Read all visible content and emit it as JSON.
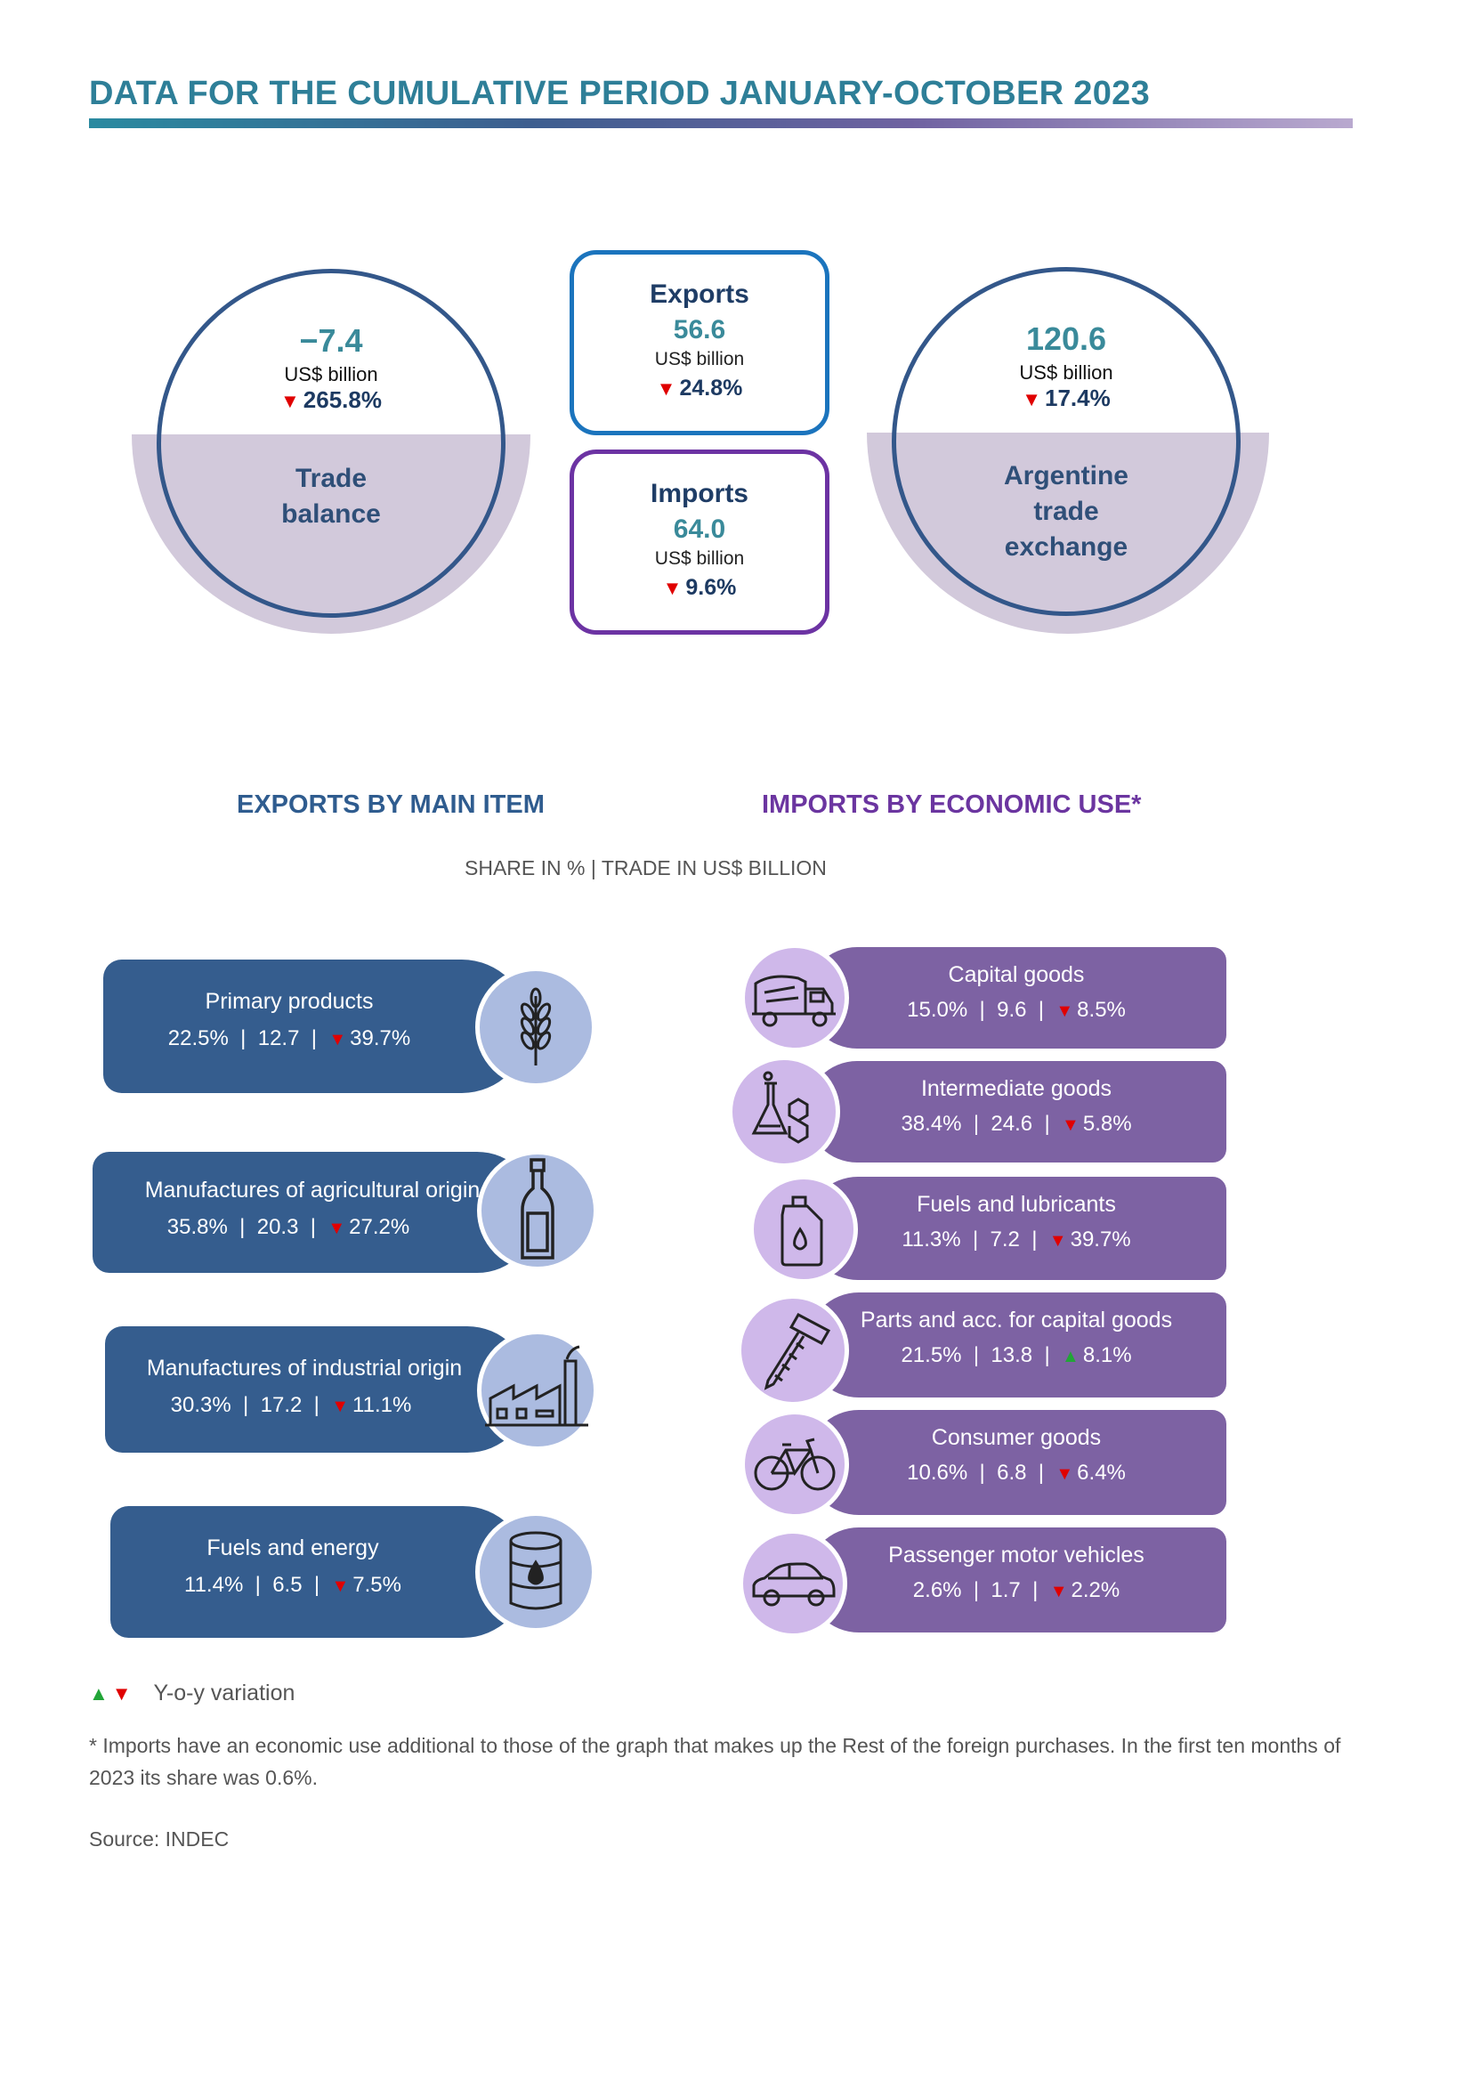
{
  "title": "DATA FOR THE CUMULATIVE PERIOD JANUARY-OCTOBER 2023",
  "summary": {
    "trade_balance": {
      "value": "−7.4",
      "unit": "US$ billion",
      "variation": "265.8%",
      "direction": "down",
      "label_line1": "Trade",
      "label_line2": "balance"
    },
    "exports": {
      "title": "Exports",
      "value": "56.6",
      "unit": "US$ billion",
      "variation": "24.8%",
      "direction": "down"
    },
    "imports": {
      "title": "Imports",
      "value": "64.0",
      "unit": "US$ billion",
      "variation": "9.6%",
      "direction": "down"
    },
    "trade_exchange": {
      "value": "120.6",
      "unit": "US$ billion",
      "variation": "17.4%",
      "direction": "down",
      "label_line1": "Argentine",
      "label_line2": "trade",
      "label_line3": "exchange"
    }
  },
  "sections": {
    "exports_title": "EXPORTS BY MAIN ITEM",
    "imports_title": "IMPORTS BY ECONOMIC USE*",
    "subtitle": "SHARE IN % | TRADE IN US$ BILLION"
  },
  "exports": [
    {
      "name": "Primary products",
      "share": "22.5%",
      "value": "12.7",
      "variation": "39.7%",
      "direction": "down",
      "icon": "wheat-icon"
    },
    {
      "name": "Manufactures of agricultural origin",
      "share": "35.8%",
      "value": "20.3",
      "variation": "27.2%",
      "direction": "down",
      "icon": "bottle-icon"
    },
    {
      "name": "Manufactures of industrial origin",
      "share": "30.3%",
      "value": "17.2",
      "variation": "11.1%",
      "direction": "down",
      "icon": "factory-icon"
    },
    {
      "name": "Fuels and energy",
      "share": "11.4%",
      "value": "6.5",
      "variation": "7.5%",
      "direction": "down",
      "icon": "oil-barrel-icon"
    }
  ],
  "imports": [
    {
      "name": "Capital goods",
      "share": "15.0%",
      "value": "9.6",
      "variation": "8.5%",
      "direction": "down",
      "icon": "cement-truck-icon"
    },
    {
      "name": "Intermediate goods",
      "share": "38.4%",
      "value": "24.6",
      "variation": "5.8%",
      "direction": "down",
      "icon": "chemistry-flask-icon"
    },
    {
      "name": "Fuels and lubricants",
      "share": "11.3%",
      "value": "7.2",
      "variation": "39.7%",
      "direction": "down",
      "icon": "fuel-jerrycan-icon"
    },
    {
      "name": "Parts and acc. for capital goods",
      "share": "21.5%",
      "value": "13.8",
      "variation": "8.1%",
      "direction": "up",
      "icon": "screw-icon"
    },
    {
      "name": "Consumer goods",
      "share": "10.6%",
      "value": "6.8",
      "variation": "6.4%",
      "direction": "down",
      "icon": "bicycle-icon"
    },
    {
      "name": "Passenger motor vehicles",
      "share": "2.6%",
      "value": "1.7",
      "variation": "2.2%",
      "direction": "down",
      "icon": "car-icon"
    }
  ],
  "legend": "Y-o-y variation",
  "note": "* Imports have an economic use additional to those of the graph that makes up the Rest of the foreign purchases. In the first ten months of 2023 its share was 0.6%.",
  "source": "Source: INDEC",
  "colors": {
    "title": "#2e7f98",
    "exports": "#355d8e",
    "imports": "#7d62a3",
    "down": "#e00000",
    "up": "#22a538"
  }
}
